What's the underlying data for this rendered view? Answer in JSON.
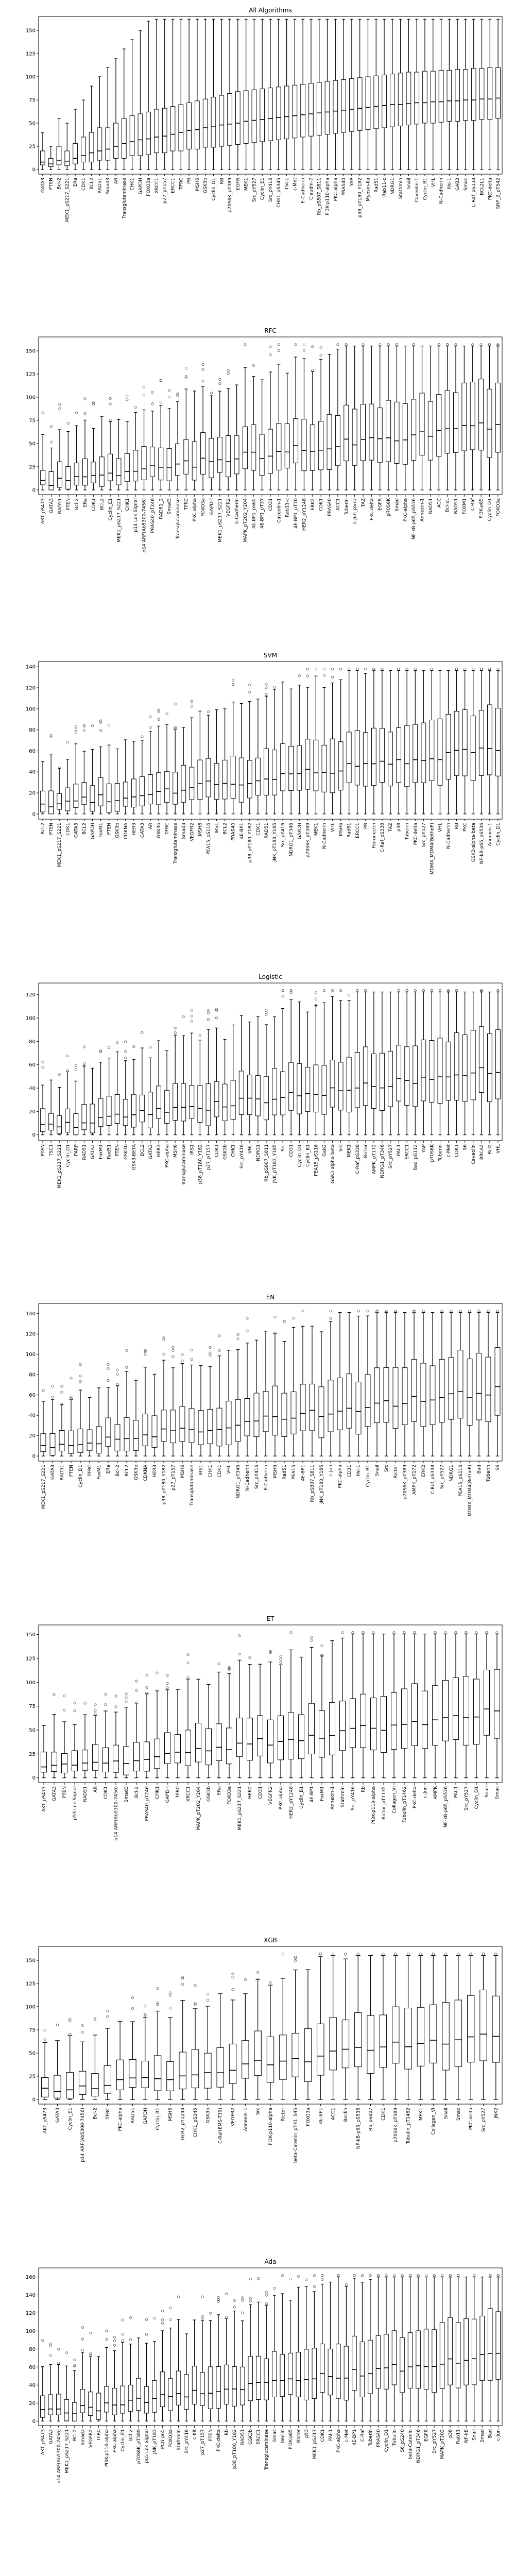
{
  "figure": {
    "panel_count": 8
  },
  "chart_data": [
    {
      "type": "boxplot",
      "title": "All Algorithms",
      "ylim": [
        -5,
        165
      ],
      "yticks": [
        0,
        25,
        50,
        75,
        100,
        125,
        150
      ],
      "categories": [
        "GATA3",
        "PTEN",
        "Bcl-2",
        "MEK1_pS217_S221",
        "ERa",
        "CDK1",
        "BCL2",
        "RAD51",
        "Smad3",
        "AR",
        "Transglutaminase",
        "CHK1",
        "GAPDH",
        "FOXO3a",
        "XRCC1",
        "p27_pT157",
        "ERCC1",
        "TFRC",
        "PR",
        "MSH6",
        "GSK3b",
        "Cyclin_D1",
        "RB",
        "p70S6K_pT389",
        "EGFR",
        "MEK1",
        "Src_pY527",
        "Cyclin_E1",
        "Src_pY416",
        "CHK1_pS345",
        "TSC1",
        "c-Met",
        "E-Cadherin",
        "Claudin-7",
        "Rb_pS807_S811",
        "PI3K-p110-alpha",
        "PKC-alpha",
        "PRAS40",
        "YAP",
        "p38_pT180_Y182",
        "Myosin-IIa",
        "Rad51",
        "Rab11-c",
        "NDRG1",
        "Stathmin",
        "Snail",
        "Caveolin-1",
        "Cyclin_B1",
        "VHL",
        "N-Cadherin",
        "PAI-1",
        "GAB2",
        "Smac",
        "C-Raf_pS338",
        "BCL2L1",
        "PKC-delta",
        "SRP_2_pT542"
      ],
      "box_stats": [
        {
          "q1": 5,
          "median": 8,
          "q3": 20,
          "whisker_low": 0,
          "whisker_high": 40
        },
        {
          "q1": 3,
          "median": 6,
          "q3": 12,
          "whisker_low": 0,
          "whisker_high": 25
        },
        {
          "q1": 5,
          "median": 10,
          "q3": 25,
          "whisker_low": 0,
          "whisker_high": 55
        },
        {
          "q1": 4,
          "median": 9,
          "q3": 20,
          "whisker_low": 0,
          "whisker_high": 50
        },
        {
          "q1": 6,
          "median": 12,
          "q3": 28,
          "whisker_low": 0,
          "whisker_high": 65
        },
        {
          "q1": 8,
          "median": 15,
          "q3": 35,
          "whisker_low": 0,
          "whisker_high": 75
        },
        {
          "q1": 8,
          "median": 18,
          "q3": 40,
          "whisker_low": 0,
          "whisker_high": 90
        },
        {
          "q1": 10,
          "median": 20,
          "q3": 45,
          "whisker_low": 0,
          "whisker_high": 100
        },
        {
          "q1": 10,
          "median": 22,
          "q3": 45,
          "whisker_low": 0,
          "whisker_high": 110
        },
        {
          "q1": 12,
          "median": 25,
          "q3": 50,
          "whisker_low": 0,
          "whisker_high": 120
        },
        {
          "q1": 12,
          "median": 28,
          "q3": 55,
          "whisker_low": 0,
          "whisker_high": 130
        },
        {
          "q1": 15,
          "median": 30,
          "q3": 58,
          "whisker_low": 0,
          "whisker_high": 140
        },
        {
          "q1": 15,
          "median": 32,
          "q3": 60,
          "whisker_low": 0,
          "whisker_high": 150
        },
        {
          "q1": 16,
          "median": 33,
          "q3": 62,
          "whisker_low": 0,
          "whisker_high": 160
        },
        {
          "q1": 18,
          "median": 35,
          "q3": 65,
          "whisker_low": 0,
          "whisker_high": 162
        },
        {
          "q1": 18,
          "median": 36,
          "q3": 66,
          "whisker_low": 0,
          "whisker_high": 162
        },
        {
          "q1": 20,
          "median": 38,
          "q3": 68,
          "whisker_low": 0,
          "whisker_high": 162
        },
        {
          "q1": 20,
          "median": 40,
          "q3": 70,
          "whisker_low": 0,
          "whisker_high": 162
        },
        {
          "q1": 22,
          "median": 42,
          "q3": 72,
          "whisker_low": 0,
          "whisker_high": 162
        },
        {
          "q1": 22,
          "median": 43,
          "q3": 74,
          "whisker_low": 0,
          "whisker_high": 162
        },
        {
          "q1": 24,
          "median": 45,
          "q3": 76,
          "whisker_low": 0,
          "whisker_high": 162
        },
        {
          "q1": 24,
          "median": 46,
          "q3": 78,
          "whisker_low": 0,
          "whisker_high": 162
        },
        {
          "q1": 25,
          "median": 48,
          "q3": 80,
          "whisker_low": 0,
          "whisker_high": 162
        },
        {
          "q1": 26,
          "median": 49,
          "q3": 82,
          "whisker_low": 0,
          "whisker_high": 162
        },
        {
          "q1": 27,
          "median": 50,
          "q3": 84,
          "whisker_low": 0,
          "whisker_high": 162
        },
        {
          "q1": 28,
          "median": 52,
          "q3": 85,
          "whisker_low": 0,
          "whisker_high": 162
        },
        {
          "q1": 29,
          "median": 53,
          "q3": 86,
          "whisker_low": 0,
          "whisker_high": 162
        },
        {
          "q1": 30,
          "median": 54,
          "q3": 87,
          "whisker_low": 0,
          "whisker_high": 162
        },
        {
          "q1": 31,
          "median": 55,
          "q3": 88,
          "whisker_low": 0,
          "whisker_high": 162
        },
        {
          "q1": 32,
          "median": 56,
          "q3": 89,
          "whisker_low": 0,
          "whisker_high": 162
        },
        {
          "q1": 33,
          "median": 57,
          "q3": 90,
          "whisker_low": 0,
          "whisker_high": 162
        },
        {
          "q1": 34,
          "median": 58,
          "q3": 91,
          "whisker_low": 0,
          "whisker_high": 162
        },
        {
          "q1": 35,
          "median": 59,
          "q3": 92,
          "whisker_low": 0,
          "whisker_high": 162
        },
        {
          "q1": 36,
          "median": 60,
          "q3": 93,
          "whisker_low": 0,
          "whisker_high": 162
        },
        {
          "q1": 37,
          "median": 61,
          "q3": 94,
          "whisker_low": 0,
          "whisker_high": 162
        },
        {
          "q1": 38,
          "median": 62,
          "q3": 95,
          "whisker_low": 0,
          "whisker_high": 162
        },
        {
          "q1": 39,
          "median": 63,
          "q3": 96,
          "whisker_low": 0,
          "whisker_high": 162
        },
        {
          "q1": 40,
          "median": 64,
          "q3": 97,
          "whisker_low": 0,
          "whisker_high": 162
        },
        {
          "q1": 41,
          "median": 65,
          "q3": 98,
          "whisker_low": 0,
          "whisker_high": 162
        },
        {
          "q1": 42,
          "median": 66,
          "q3": 99,
          "whisker_low": 0,
          "whisker_high": 162
        },
        {
          "q1": 43,
          "median": 67,
          "q3": 100,
          "whisker_low": 0,
          "whisker_high": 162
        },
        {
          "q1": 44,
          "median": 68,
          "q3": 101,
          "whisker_low": 0,
          "whisker_high": 162
        },
        {
          "q1": 45,
          "median": 69,
          "q3": 102,
          "whisker_low": 0,
          "whisker_high": 162
        },
        {
          "q1": 46,
          "median": 70,
          "q3": 103,
          "whisker_low": 0,
          "whisker_high": 162
        },
        {
          "q1": 47,
          "median": 70,
          "q3": 104,
          "whisker_low": 0,
          "whisker_high": 162
        },
        {
          "q1": 48,
          "median": 71,
          "q3": 105,
          "whisker_low": 0,
          "whisker_high": 162
        },
        {
          "q1": 49,
          "median": 72,
          "q3": 105,
          "whisker_low": 0,
          "whisker_high": 162
        },
        {
          "q1": 50,
          "median": 72,
          "q3": 106,
          "whisker_low": 0,
          "whisker_high": 162
        },
        {
          "q1": 50,
          "median": 73,
          "q3": 106,
          "whisker_low": 0,
          "whisker_high": 162
        },
        {
          "q1": 51,
          "median": 73,
          "q3": 107,
          "whisker_low": 0,
          "whisker_high": 162
        },
        {
          "q1": 52,
          "median": 74,
          "q3": 107,
          "whisker_low": 0,
          "whisker_high": 162
        },
        {
          "q1": 52,
          "median": 74,
          "q3": 108,
          "whisker_low": 0,
          "whisker_high": 162
        },
        {
          "q1": 53,
          "median": 75,
          "q3": 108,
          "whisker_low": 0,
          "whisker_high": 162
        },
        {
          "q1": 53,
          "median": 75,
          "q3": 109,
          "whisker_low": 0,
          "whisker_high": 162
        },
        {
          "q1": 54,
          "median": 76,
          "q3": 109,
          "whisker_low": 0,
          "whisker_high": 162
        },
        {
          "q1": 54,
          "median": 76,
          "q3": 110,
          "whisker_low": 0,
          "whisker_high": 162
        },
        {
          "q1": 55,
          "median": 77,
          "q3": 110,
          "whisker_low": 0,
          "whisker_high": 162
        }
      ]
    },
    {
      "type": "boxplot",
      "title": "RFC",
      "ylim": [
        -5,
        165
      ],
      "yticks": [
        0,
        25,
        50,
        75,
        100,
        125,
        150
      ],
      "categories": [
        "AKT_pS473",
        "GATA3",
        "RAD51",
        "PTEN",
        "Bcl-2",
        "ERa",
        "CDK1",
        "BCL2",
        "Cyclin_E1",
        "MEK1_pS217_S221",
        "CHK1",
        "p14 Lck Signal",
        "p14 ARF(Ab5300-7456)",
        "PRAS40_pT246",
        "RAD51_2",
        "Smad3",
        "Transglutaminase",
        "TFRC",
        "PKC-alpha",
        "FOXO3a",
        "GAPDH",
        "MEK1_pS217_S221",
        "VEGFR2",
        "E-Cadherin",
        "MAPK_pT202_Y204",
        "4E-BP1_pS65",
        "4E-BP1_pT37",
        "CD31",
        "Caveolin-1",
        "Rab11-c",
        "4E-BP1_pT70",
        "HER2_pY1248",
        "ERK2",
        "CDK1",
        "PRAS40",
        "ACC1",
        "Tuberin",
        "c-Jun_pS73",
        "TAZ",
        "PKC-delta",
        "EGFR",
        "p70S6K",
        "Smad",
        "PKC-alpha",
        "NF-kB-p65_pS536",
        "Annexin-1",
        "RAD51",
        "ACC",
        "Bcl-xL",
        "RAD51",
        "FOXM1",
        "C-Raf",
        "PI3K-p85",
        "Cyclin_D1",
        "FOXO3a"
      ],
      "box_stats": []
    },
    {
      "type": "boxplot",
      "title": "SVM",
      "ylim": [
        -5,
        145
      ],
      "yticks": [
        0,
        20,
        40,
        60,
        80,
        100,
        120,
        140
      ],
      "categories": [
        "Bcl-2",
        "PTEN",
        "MEK1_pS217_S221",
        "CDK1",
        "GATA3",
        "BCL2",
        "GAPDH",
        "FoxM1",
        "PTEN",
        "GSK3b",
        "CDKNA",
        "HER3",
        "GATA3",
        "AR",
        "GSK3b",
        "TFRC",
        "Transglutaminase",
        "Smad3",
        "VEGFR2",
        "MSH6",
        "PEA15_pS116",
        "IRS1",
        "BCL2",
        "PRAS40",
        "4E-BP1",
        "p38_pT180_Y182",
        "CDK1",
        "RAD51",
        "JNK_pT183_Y185",
        "Src_pY416",
        "NDRG1_pT346",
        "GAPDH",
        "p70S6K_pT389",
        "MEK1",
        "N-Cadherin",
        "VHL",
        "MSH6",
        "Rad51",
        "ERCC1",
        "PR",
        "Fibronectin",
        "C-Raf_pS338",
        "TAZ",
        "p38",
        "Tuberin",
        "PKC-delta",
        "Src_pY527",
        "MDMX_MDM4(BetheP)",
        "VHL",
        "N-Cadherin",
        "RB",
        "PKC",
        "GSK3-alpha-beta",
        "NF-kB-p65_pS536",
        "Annexin-1",
        "Cyclin_D1"
      ],
      "box_stats": []
    },
    {
      "type": "boxplot",
      "title": "Logistic",
      "ylim": [
        -5,
        130
      ],
      "yticks": [
        0,
        20,
        40,
        60,
        80,
        100,
        120
      ],
      "categories": [
        "PTEN",
        "TSC1",
        "MEK1_pS217_S221",
        "Cyclin_D1",
        "PARP",
        "RAD51",
        "GATA3",
        "FoxM1",
        "Rad51",
        "PTEN",
        "GSK3b",
        "GSK3-BETA",
        "BCL2",
        "GATA3",
        "HER3",
        "PKC-alpha",
        "MSH6",
        "Transglutaminase",
        "IRS1",
        "p38_pT180_Y182",
        "p27_pT157",
        "CDK1",
        "GSK3b",
        "CHK1",
        "Src_pY416",
        "VHL",
        "NDRG1",
        "Rb_pS807_S811",
        "JNK_pT183_Y185",
        "Src",
        "CD31",
        "Cyclin_D1",
        "Cyclin_B1",
        "PEA15_pS116",
        "Gab2",
        "GSK3-alpha-beta",
        "Src",
        "MEK1",
        "C-Raf_pS338",
        "Rictor",
        "AMPK_pT172",
        "NDRG1_pT346",
        "Src_pY527",
        "PAI-1",
        "ERCC1",
        "Bad_pS112",
        "YAP",
        "p70S6K",
        "Tuberin",
        "c-Met",
        "CDK1",
        "S6",
        "Caveolin",
        "BRCA2",
        "Bcl2",
        "VHL"
      ],
      "box_stats": []
    },
    {
      "type": "boxplot",
      "title": "EN",
      "ylim": [
        -5,
        150
      ],
      "yticks": [
        0,
        20,
        40,
        60,
        80,
        100,
        120,
        140
      ],
      "categories": [
        "MEK1_pS217_S221",
        "GATA3",
        "RAD51",
        "PTEN",
        "Cyclin_D1",
        "TFRC",
        "FoxM1",
        "ERa",
        "Bcl-2",
        "BCL2",
        "GSK3b",
        "CDKNA",
        "HER3",
        "p38_pT180_Y182",
        "p27_pT157",
        "MSH6",
        "Transglutaminase",
        "IRS1",
        "CHK1",
        "CDK1",
        "VHL",
        "NDRG1_pT346",
        "N-Cadherin",
        "Src_pY416",
        "E-Cadherin",
        "MSH6",
        "Rad51",
        "PEA15",
        "4E-BP1",
        "Rb_pS807_S811",
        "JNK_pT183_Y185",
        "c-Jun",
        "PKC-alpha",
        "CD31",
        "PAI-1",
        "Cyclin_B1",
        "Snail",
        "Src",
        "Rictor",
        "p70S6K_pT389",
        "AMPK_pT172",
        "ERK2",
        "C-Raf_pS338",
        "Src_pY527",
        "NDRG1",
        "PEA15_pS116",
        "MDMX_MDM4(BetheP)",
        "Bad",
        "Tuberin",
        "S6"
      ],
      "box_stats": []
    },
    {
      "type": "boxplot",
      "title": "ET",
      "ylim": [
        -5,
        160
      ],
      "yticks": [
        0,
        25,
        50,
        75,
        100,
        125,
        150
      ],
      "categories": [
        "AKT_pS473",
        "GATA3",
        "PTEN",
        "p53 Lck Signal",
        "RAD51",
        "AR",
        "CDK1",
        "p14 ARF(Ab5300-7456)",
        "Smad3",
        "Bcl-2",
        "PRAS40_pT246",
        "CHK1",
        "GAPDH",
        "TFRC",
        "XRCC1",
        "MAPK_pT202_Y204",
        "GSK3b",
        "ERa",
        "FOXO3a",
        "MEK1_pS217_S221",
        "HER2",
        "CD31",
        "VEGFR2",
        "PKC-alpha",
        "HER2_pY1248",
        "Cyclin_B1",
        "4E-BP1",
        "FoxM1",
        "Annexin-1",
        "Stathmin",
        "Src_pY416",
        "Rb",
        "PI3K-p110-alpha",
        "Rictor_pT1135",
        "Collagen_VI",
        "Tubulin_pT1462",
        "PKC-delta",
        "c-Jun",
        "AMPK",
        "NF-kB-p65_pS536",
        "PAI-1",
        "Src_pY527",
        "Cyclin_D1",
        "Snail",
        "Smac"
      ],
      "box_stats": []
    },
    {
      "type": "boxplot",
      "title": "XGB",
      "ylim": [
        -5,
        165
      ],
      "yticks": [
        0,
        25,
        50,
        75,
        100,
        125,
        150
      ],
      "categories": [
        "AKT_pS473",
        "GATA3",
        "Cyclin_E1",
        "p14 ARF(Ab5300-7456)",
        "Bcl-2",
        "TFRC",
        "PKC-alpha",
        "RAD51",
        "GAPDH",
        "Cyclin_B1",
        "MSH6",
        "HER2_pY1248",
        "CHK1_pS345",
        "GSK3b",
        "C-Raf(EMS-T39)",
        "VEGFR2",
        "Annexin-1",
        "Src",
        "PI3K-p110-alpha",
        "Rictor",
        "beta-Catenin_pT41_S45",
        "FOXO3a",
        "4E-BP1",
        "ACC1",
        "Beclin",
        "NF-kB-p65_pS536",
        "Rb_pS807",
        "CDK1",
        "p70S6K_pT389",
        "Tubulin_pT1462",
        "MEK1",
        "Collagen_VI",
        "Snail",
        "Smac",
        "PKC-delta",
        "Src_pY527",
        "JNK2"
      ],
      "box_stats": []
    },
    {
      "type": "boxplot",
      "title": "Ada",
      "ylim": [
        -5,
        170
      ],
      "yticks": [
        0,
        20,
        40,
        60,
        80,
        100,
        120,
        140,
        160
      ],
      "categories": [
        "AKT_pS473",
        "GATA3",
        "p14 ARF(Ab5300-7456)",
        "MEK1_pS217_S221",
        "BCL2",
        "Smad3",
        "VEGFR2",
        "TFRC",
        "PI3K-p110-alpha",
        "PKC-alpha",
        "Cyclin_E1",
        "Bcl-2",
        "p70S6K_pT389",
        "p65 Lck Signal",
        "JNK_pT183",
        "PCB-p65",
        "FOXO3a",
        "Stathmin",
        "Src_pY416",
        "c-Kit",
        "p27_pT157",
        "PTEN",
        "PKC-delta",
        "Rb",
        "p38_pT180_Y182",
        "RAD51",
        "GSK3b",
        "ERCC1",
        "Transglutaminase",
        "Smac",
        "Beclin",
        "PI3K-p85",
        "Rictor",
        "p53",
        "MEK1_pS217",
        "CDK1",
        "PAI-1",
        "PKC-alpha",
        "c-Met",
        "4E-BP1",
        "C-Raf",
        "Tuberin",
        "PRAS40",
        "Cyclin_D1",
        "Tubulin",
        "S6_pS240",
        "beta-Catenin",
        "NDRG1_pT346",
        "EGFR",
        "Src_pY527",
        "MAPK_pT202",
        "p38",
        "Rab11",
        "NF-kB",
        "Snail",
        "Smad",
        "Bad",
        "c-Jun"
      ],
      "box_stats": []
    }
  ]
}
